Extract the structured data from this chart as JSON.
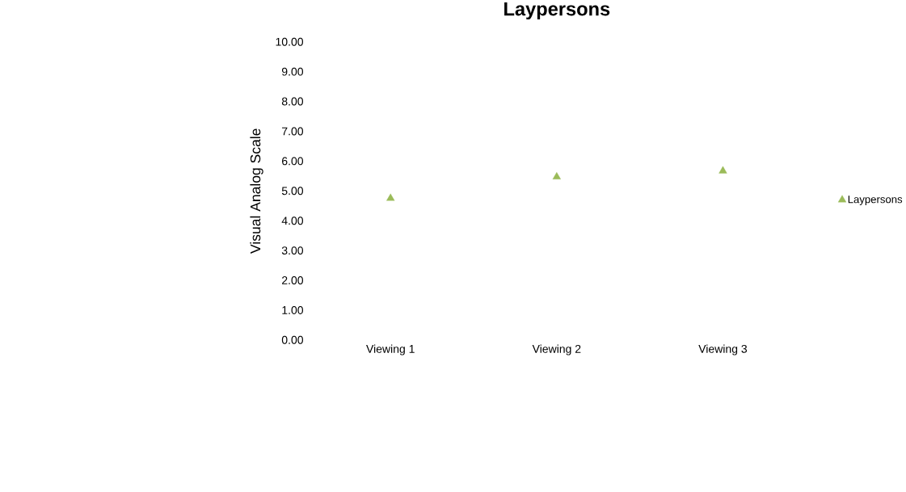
{
  "chart_data": {
    "type": "scatter",
    "title": "Laypersons",
    "ylabel": "Visual Analog Scale",
    "categories": [
      "Viewing 1",
      "Viewing 2",
      "Viewing 3"
    ],
    "series": [
      {
        "name": "Laypersons",
        "color": "#9bbb59",
        "values": [
          4.75,
          5.47,
          5.67
        ]
      }
    ],
    "ylim": [
      0,
      10
    ],
    "yticks": [
      {
        "value": 0,
        "label": "0.00"
      },
      {
        "value": 1,
        "label": "1.00"
      },
      {
        "value": 2,
        "label": "2.00"
      },
      {
        "value": 3,
        "label": "3.00"
      },
      {
        "value": 4,
        "label": "4.00"
      },
      {
        "value": 5,
        "label": "5.00"
      },
      {
        "value": 6,
        "label": "6.00"
      },
      {
        "value": 7,
        "label": "7.00"
      },
      {
        "value": 8,
        "label": "8.00"
      },
      {
        "value": 9,
        "label": "9.00"
      },
      {
        "value": 10,
        "label": "10.00"
      }
    ],
    "marker": "triangle",
    "legend": "right",
    "grid": false
  }
}
